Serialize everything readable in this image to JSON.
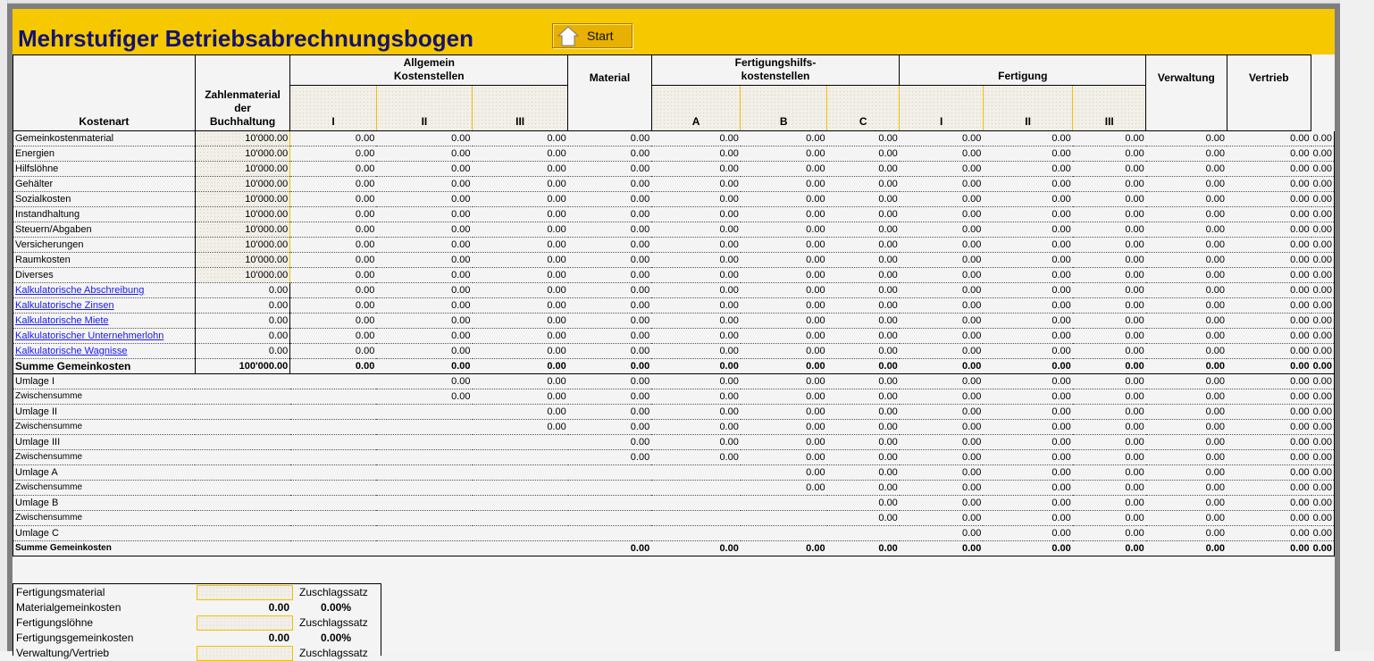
{
  "title": "Mehrstufiger Betriebsabrechnungsbogen",
  "start_button": {
    "label": "Start",
    "icon": "house-icon"
  },
  "colors": {
    "banner": "#f5c800",
    "title": "#14146e",
    "link": "#1a1aee",
    "input_border": "#f0c000"
  },
  "header": {
    "kostenart": "Kostenart",
    "zahlenmaterial": [
      "Zahlenmaterial",
      "der",
      "Buchhaltung"
    ],
    "allgemein": [
      "Allgemein",
      "Kostenstellen"
    ],
    "allgemein_sub": [
      "I",
      "II",
      "III"
    ],
    "material": "Material",
    "fhilfs": [
      "Fertigungshilfs-",
      "kostenstellen"
    ],
    "fhilfs_sub": [
      "A",
      "B",
      "C"
    ],
    "fertigung": "Fertigung",
    "fertigung_sub": [
      "I",
      "II",
      "III"
    ],
    "verwaltung": "Verwaltung",
    "vertrieb": "Vertrieb"
  },
  "rows": [
    {
      "label": "Gemeinkostenmaterial",
      "buch": "10'000.00",
      "input": true
    },
    {
      "label": "Energien",
      "buch": "10'000.00",
      "input": true
    },
    {
      "label": "Hilfslöhne",
      "buch": "10'000.00",
      "input": true
    },
    {
      "label": "Gehälter",
      "buch": "10'000.00",
      "input": true
    },
    {
      "label": "Sozialkosten",
      "buch": "10'000.00",
      "input": true
    },
    {
      "label": "Instandhaltung",
      "buch": "10'000.00",
      "input": true
    },
    {
      "label": "Steuern/Abgaben",
      "buch": "10'000.00",
      "input": true
    },
    {
      "label": "Versicherungen",
      "buch": "10'000.00",
      "input": true
    },
    {
      "label": "Raumkosten",
      "buch": "10'000.00",
      "input": true
    },
    {
      "label": "Diverses",
      "buch": "10'000.00",
      "input": true
    },
    {
      "label": "Kalkulatorische Abschreibung",
      "buch": "0.00",
      "link": true
    },
    {
      "label": "Kalkulatorische Zinsen",
      "buch": "0.00",
      "link": true
    },
    {
      "label": "Kalkulatorische Miete",
      "buch": "0.00",
      "link": true
    },
    {
      "label": "Kalkulatorischer Unternehmerlohn",
      "buch": "0.00",
      "link": true
    },
    {
      "label": "Kalkulatorische Wagnisse",
      "buch": "0.00",
      "link": true
    },
    {
      "label": "Summe Gemeinkosten",
      "buch": "100'000.00",
      "bold": true
    }
  ],
  "cell_value": "0.00",
  "umlage_rows": [
    {
      "label": "Umlage I",
      "start": 1
    },
    {
      "label": "Zwischensumme",
      "start": 1,
      "small": true
    },
    {
      "label": "Umlage II",
      "start": 2
    },
    {
      "label": "Zwischensumme",
      "start": 2,
      "small": true
    },
    {
      "label": "Umlage III",
      "start": 3
    },
    {
      "label": "Zwischensumme",
      "start": 3,
      "small": true
    },
    {
      "label": "Umlage A",
      "start": 5
    },
    {
      "label": "Zwischensumme",
      "start": 5,
      "small": true
    },
    {
      "label": "Umlage B",
      "start": 6
    },
    {
      "label": "Zwischensumme",
      "start": 6,
      "small": true
    },
    {
      "label": "Umlage C",
      "start": 7
    },
    {
      "label": "Summe Gemeinkosten",
      "start": 3,
      "small": true,
      "bold": true
    }
  ],
  "zuschlag": [
    {
      "label": "Fertigungsmaterial",
      "input": true,
      "right": "Zuschlagssatz"
    },
    {
      "label": "Materialgemeinkosten",
      "value": "0.00",
      "percent": "0.00%"
    },
    {
      "label": "Fertigungslöhne",
      "input": true,
      "right": "Zuschlagssatz"
    },
    {
      "label": "Fertigungsgemeinkosten",
      "value": "0.00",
      "percent": "0.00%"
    },
    {
      "label": "Verwaltung/Vertrieb",
      "input": true,
      "right": "Zuschlagssatz"
    }
  ]
}
